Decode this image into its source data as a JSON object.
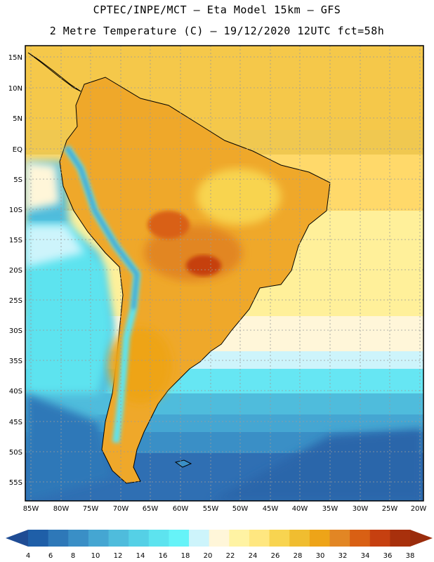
{
  "header": {
    "line1": "CPTEC/INPE/MCT –  Eta Model 15km – GFS",
    "line2": "2 Metre Temperature (C) – 19/12/2020 12UTC fct=58h"
  },
  "axes": {
    "lat_labels": [
      "15N",
      "10N",
      "5N",
      "EQ",
      "5S",
      "10S",
      "15S",
      "20S",
      "25S",
      "30S",
      "35S",
      "40S",
      "45S",
      "50S",
      "55S"
    ],
    "lon_labels": [
      "85W",
      "80W",
      "75W",
      "70W",
      "65W",
      "60W",
      "55W",
      "50W",
      "45W",
      "40W",
      "35W",
      "30W",
      "25W",
      "20W"
    ]
  },
  "colorbar": {
    "labels": [
      "4",
      "6",
      "8",
      "10",
      "12",
      "14",
      "16",
      "18",
      "20",
      "22",
      "24",
      "26",
      "28",
      "30",
      "32",
      "34",
      "36",
      "38"
    ],
    "colors": [
      "#1f5fa8",
      "#2e78b8",
      "#3a8fc6",
      "#45a6d2",
      "#4fbcdc",
      "#55d0e6",
      "#5de3ef",
      "#66f3f8",
      "#cdf4fb",
      "#fff6d9",
      "#fff3a3",
      "#ffe780",
      "#f8d450",
      "#f0bd30",
      "#eea418",
      "#e28624",
      "#d96014",
      "#c64010",
      "#a8300c"
    ],
    "under_color": "#1f4c94",
    "over_color": "#9a2c0c"
  },
  "legend_colors": {
    "ocean_cold": "#2f6fb3",
    "ocean_mid": "#4fbcdc",
    "ocean_warm": "#fff3a3",
    "land_hot": "#f0bd30"
  }
}
